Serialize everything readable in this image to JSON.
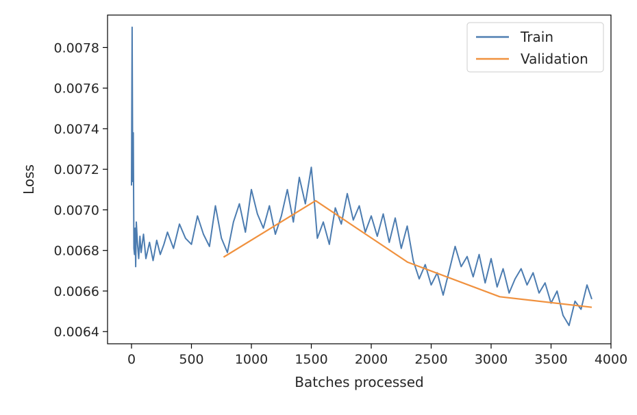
{
  "chart_data": {
    "type": "line",
    "title": "",
    "xlabel": "Batches processed",
    "ylabel": "Loss",
    "xlim": [
      -200,
      4000
    ],
    "ylim": [
      0.00634,
      0.00796
    ],
    "x_ticks": [
      0,
      500,
      1000,
      1500,
      2000,
      2500,
      3000,
      3500,
      4000
    ],
    "x_tick_labels": [
      "0",
      "500",
      "1000",
      "1500",
      "2000",
      "2500",
      "3000",
      "3500",
      "4000"
    ],
    "y_ticks": [
      0.0064,
      0.0066,
      0.0068,
      0.007,
      0.0072,
      0.0074,
      0.0076,
      0.0078
    ],
    "y_tick_labels": [
      "0.0064",
      "0.0066",
      "0.0068",
      "0.0070",
      "0.0072",
      "0.0074",
      "0.0076",
      "0.0078"
    ],
    "grid": false,
    "legend_position": "top-right",
    "series": [
      {
        "name": "Train",
        "color": "#4c7cb0",
        "x": [
          0,
          5,
          10,
          15,
          20,
          25,
          30,
          35,
          40,
          50,
          60,
          70,
          80,
          100,
          120,
          150,
          180,
          210,
          240,
          270,
          300,
          350,
          400,
          450,
          500,
          550,
          600,
          650,
          700,
          750,
          800,
          850,
          900,
          950,
          1000,
          1050,
          1100,
          1150,
          1200,
          1250,
          1300,
          1350,
          1400,
          1450,
          1500,
          1520,
          1550,
          1600,
          1650,
          1700,
          1750,
          1800,
          1850,
          1900,
          1950,
          2000,
          2050,
          2100,
          2150,
          2200,
          2250,
          2300,
          2350,
          2400,
          2450,
          2500,
          2550,
          2600,
          2650,
          2700,
          2750,
          2800,
          2850,
          2900,
          2950,
          3000,
          3050,
          3100,
          3150,
          3200,
          3250,
          3300,
          3350,
          3400,
          3450,
          3500,
          3550,
          3600,
          3650,
          3700,
          3750,
          3800,
          3840
        ],
        "y": [
          0.00712,
          0.0079,
          0.00714,
          0.00738,
          0.00681,
          0.00678,
          0.00691,
          0.00672,
          0.00694,
          0.00683,
          0.00676,
          0.00687,
          0.00679,
          0.00688,
          0.00676,
          0.00684,
          0.00675,
          0.00685,
          0.00678,
          0.00683,
          0.00689,
          0.00681,
          0.00693,
          0.00686,
          0.00683,
          0.00697,
          0.00688,
          0.00682,
          0.00702,
          0.00686,
          0.00679,
          0.00694,
          0.00703,
          0.00689,
          0.0071,
          0.00698,
          0.00691,
          0.00702,
          0.00688,
          0.00697,
          0.0071,
          0.00694,
          0.00716,
          0.00703,
          0.00721,
          0.00708,
          0.00686,
          0.00694,
          0.00683,
          0.00701,
          0.00693,
          0.00708,
          0.00695,
          0.00702,
          0.00689,
          0.00697,
          0.00687,
          0.00698,
          0.00684,
          0.00696,
          0.00681,
          0.00692,
          0.00675,
          0.00666,
          0.00673,
          0.00663,
          0.00669,
          0.00658,
          0.0067,
          0.00682,
          0.00672,
          0.00677,
          0.00667,
          0.00678,
          0.00664,
          0.00676,
          0.00662,
          0.00671,
          0.00659,
          0.00666,
          0.00671,
          0.00663,
          0.00669,
          0.00659,
          0.00664,
          0.00654,
          0.0066,
          0.00648,
          0.00643,
          0.00655,
          0.00651,
          0.00663,
          0.00656
        ]
      },
      {
        "name": "Validation",
        "color": "#f0913e",
        "x": [
          768,
          1536,
          2304,
          3072,
          3840
        ],
        "y": [
          0.006767,
          0.007045,
          0.006742,
          0.006572,
          0.00652
        ]
      }
    ]
  }
}
